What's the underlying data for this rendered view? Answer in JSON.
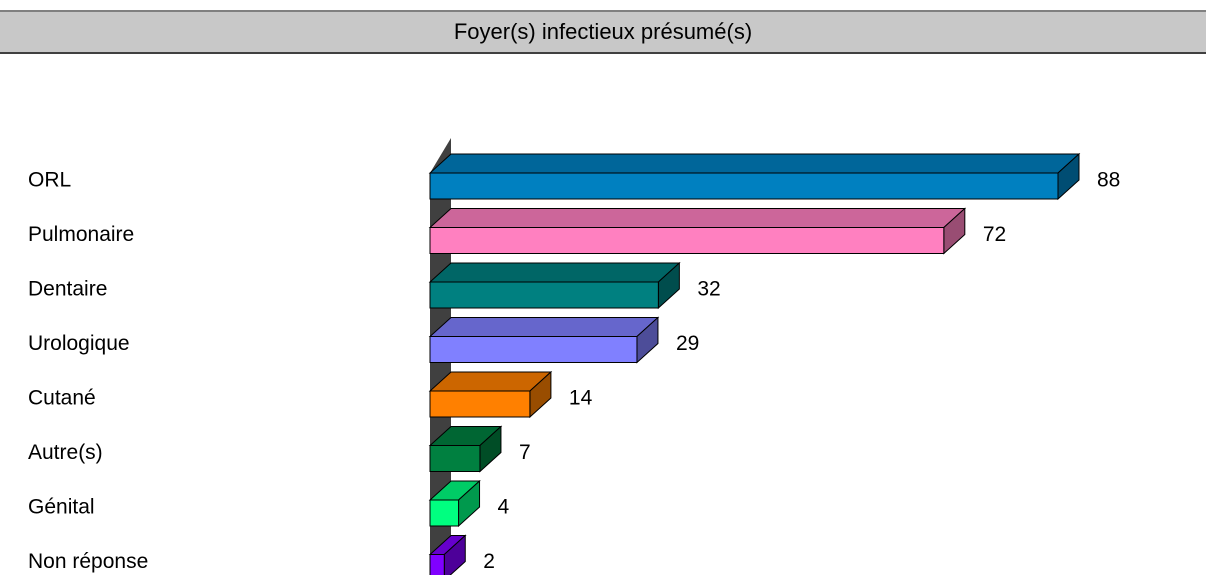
{
  "chart_data": {
    "type": "bar",
    "orientation": "horizontal",
    "style": "3d",
    "title": "Foyer(s) infectieux présumé(s)",
    "categories": [
      "ORL",
      "Pulmonaire",
      "Dentaire",
      "Urologique",
      "Cutané",
      "Autre(s)",
      "Génital",
      "Non réponse"
    ],
    "values": [
      88,
      72,
      32,
      29,
      14,
      7,
      4,
      2
    ],
    "colors": [
      "#0080c0",
      "#ff80c0",
      "#008080",
      "#8080ff",
      "#ff8000",
      "#008040",
      "#00ff80",
      "#8000ff"
    ],
    "xlim": [
      0,
      88
    ],
    "grid": false,
    "legend": "none"
  }
}
